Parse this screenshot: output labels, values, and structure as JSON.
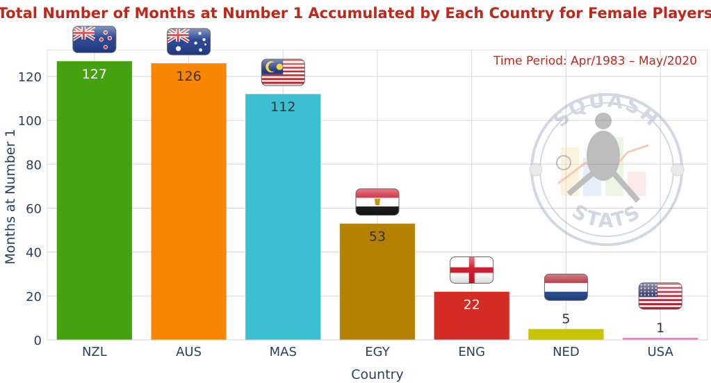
{
  "chart_data": {
    "type": "bar",
    "title": "Total Number of Months at Number 1 Accumulated by Each Country for Female Players",
    "annotation": "Time Period: Apr/1983 – May/2020",
    "xlabel": "Country",
    "ylabel": "Months at Number 1",
    "categories": [
      "NZL",
      "AUS",
      "MAS",
      "EGY",
      "ENG",
      "NED",
      "USA"
    ],
    "values": [
      127,
      126,
      112,
      53,
      22,
      5,
      1
    ],
    "data_labels": [
      "127",
      "126",
      "112",
      "53",
      "22",
      "5",
      "1"
    ],
    "bar_colors": [
      "#45a20f",
      "#f88600",
      "#3cbfd1",
      "#b58200",
      "#d42b24",
      "#c8c400",
      "#e07fc6"
    ],
    "label_colors": [
      "#ffffff",
      "#333333",
      "#333333",
      "#333333",
      "#ffffff",
      "#333333",
      "#333333"
    ],
    "flags": [
      "new-zealand-flag",
      "australia-flag",
      "malaysia-flag",
      "egypt-flag",
      "england-flag",
      "netherlands-flag",
      "usa-flag"
    ],
    "ylim": [
      0,
      132
    ],
    "yticks": [
      0,
      20,
      40,
      60,
      80,
      100,
      120
    ],
    "grid": true,
    "watermark": {
      "top_text": "SQUASH",
      "bottom_text": "STATS"
    },
    "colors": {
      "title": "#c0281c",
      "annotation": "#c0281c",
      "axis_text": "#2a3f5f",
      "grid": "#d8d8d8"
    }
  }
}
